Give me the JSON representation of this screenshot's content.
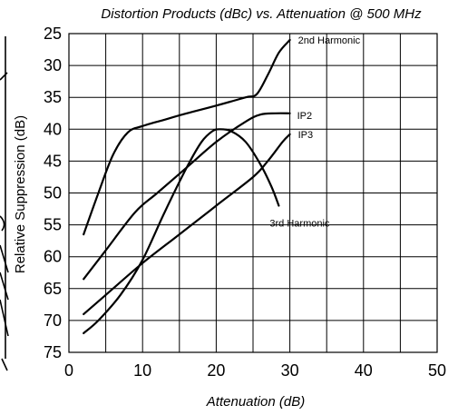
{
  "chart_data": {
    "type": "line",
    "title": "Distortion Products (dBc) vs. Attenuation @ 500 MHz",
    "xlabel": "Attenuation (dB)",
    "ylabel": "Relative Suppression (dB)",
    "xlim": [
      0,
      50
    ],
    "ylim": [
      25,
      75
    ],
    "y_inverted": true,
    "x_ticks": [
      "0",
      "10",
      "20",
      "30",
      "40",
      "50"
    ],
    "y_ticks": [
      "25",
      "30",
      "35",
      "40",
      "45",
      "50",
      "55",
      "60",
      "65",
      "70",
      "75"
    ],
    "grid": true,
    "series": [
      {
        "name": "2nd Harmonic",
        "x": [
          2,
          4,
          6,
          8,
          10,
          13,
          16,
          20,
          24,
          25.5,
          27,
          28.5,
          30
        ],
        "y": [
          56.5,
          50,
          44,
          40.5,
          39.5,
          38.5,
          37.5,
          36.3,
          35,
          34.5,
          31.5,
          28,
          26
        ]
      },
      {
        "name": "IP2",
        "x": [
          2,
          5,
          9,
          12,
          16,
          20,
          24,
          26,
          28,
          30
        ],
        "y": [
          63.5,
          59,
          53,
          50,
          46,
          42,
          38.8,
          37.7,
          37.5,
          37.5
        ]
      },
      {
        "name": "IP3",
        "x": [
          2,
          5,
          10,
          15,
          20,
          25,
          27,
          29,
          30
        ],
        "y": [
          69,
          66,
          61,
          56.5,
          52,
          47.5,
          45,
          42,
          40.8
        ]
      },
      {
        "name": "3rd Harmonic",
        "x": [
          2,
          4,
          7,
          10,
          13,
          16,
          18,
          19.5,
          20.5,
          22,
          24,
          26,
          27.5,
          28.5
        ],
        "y": [
          72,
          70,
          66,
          60.5,
          53,
          46,
          42,
          40.3,
          40,
          40.3,
          42,
          45.5,
          49,
          52
        ]
      }
    ]
  }
}
